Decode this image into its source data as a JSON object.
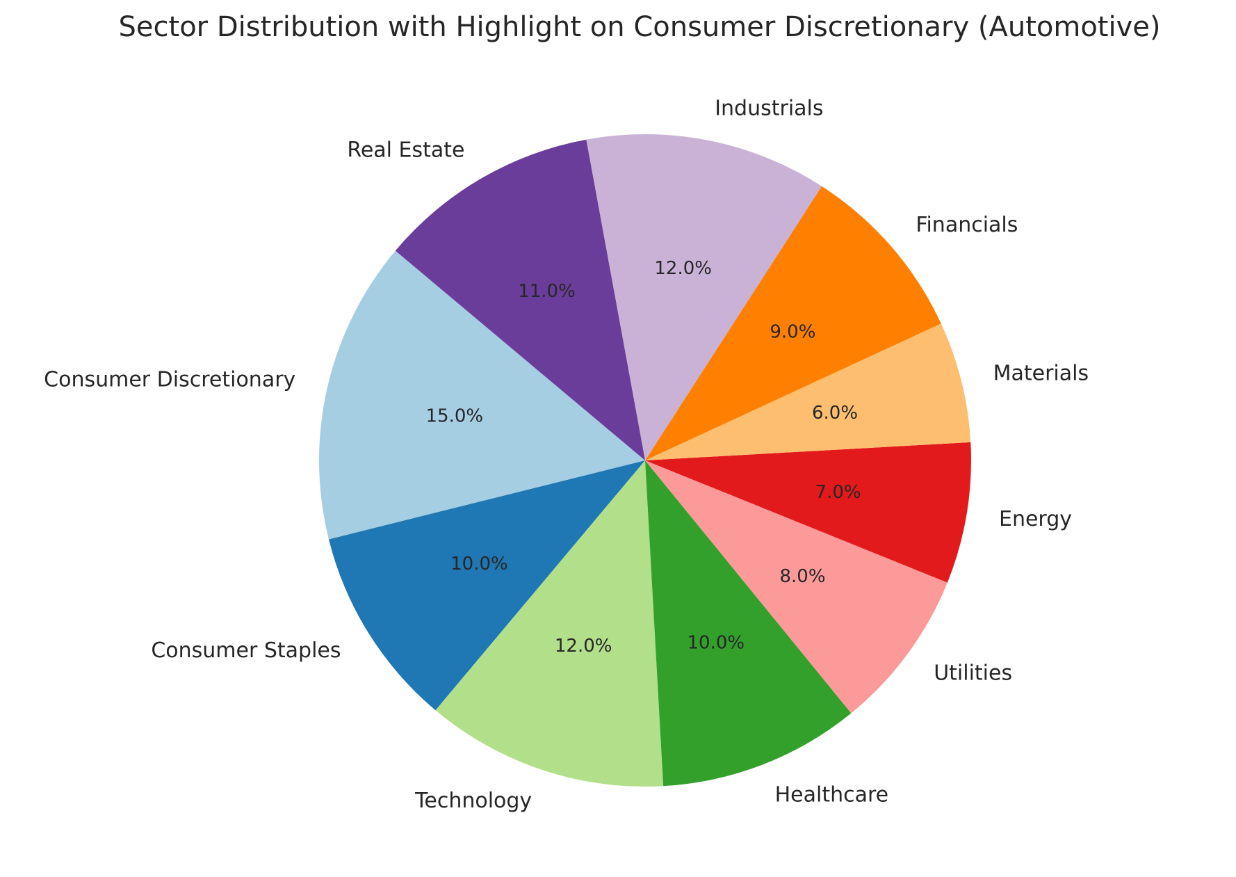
{
  "chart_data": {
    "type": "pie",
    "title": "Sector Distribution with Highlight on Consumer Discretionary (Automotive)",
    "categories": [
      "Consumer Discretionary",
      "Consumer Staples",
      "Technology",
      "Healthcare",
      "Utilities",
      "Energy",
      "Materials",
      "Financials",
      "Industrials",
      "Real Estate"
    ],
    "values": [
      15,
      10,
      12,
      10,
      8,
      7,
      6,
      9,
      12,
      11
    ],
    "value_labels": [
      "15.0%",
      "10.0%",
      "12.0%",
      "10.0%",
      "8.0%",
      "7.0%",
      "6.0%",
      "9.0%",
      "12.0%",
      "11.0%"
    ],
    "colors": [
      "#a6cee3",
      "#1f78b4",
      "#b2df8a",
      "#33a02c",
      "#fb9a99",
      "#e31a1c",
      "#fdbf6f",
      "#ff7f00",
      "#cab2d6",
      "#6a3d9a"
    ],
    "start_angle_deg": 140,
    "direction": "counterclockwise"
  }
}
